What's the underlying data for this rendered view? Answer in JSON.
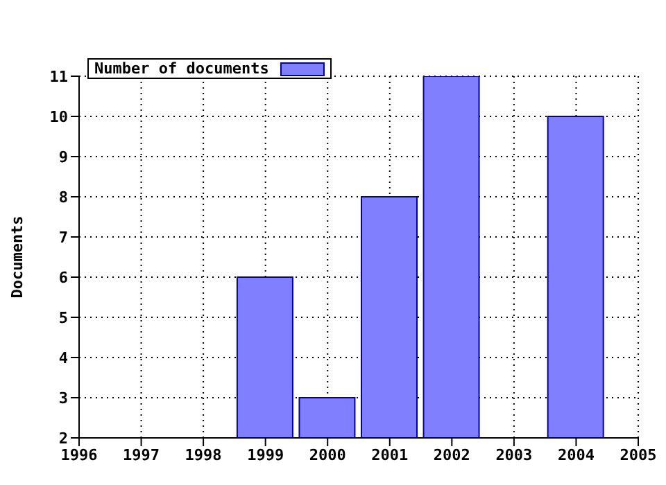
{
  "chart_data": {
    "type": "bar",
    "ylabel": "Documents",
    "x": [
      1999,
      2000,
      2001,
      2002,
      2004
    ],
    "series": [
      {
        "name": "Number of documents",
        "color": "#8080ff",
        "values": [
          6,
          3,
          8,
          11,
          10
        ]
      }
    ],
    "xlim": [
      1996,
      2005
    ],
    "xticks": [
      1996,
      1997,
      1998,
      1999,
      2000,
      2001,
      2002,
      2003,
      2004,
      2005
    ],
    "ylim": [
      2,
      11
    ],
    "yticks": [
      2,
      3,
      4,
      5,
      6,
      7,
      8,
      9,
      10,
      11
    ],
    "grid": true,
    "legend": "top left"
  }
}
